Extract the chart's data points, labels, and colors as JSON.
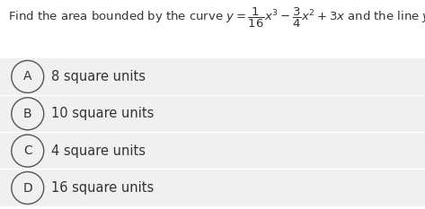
{
  "question_text": "Find the area bounded by the curve $y=\\dfrac{1}{16}x^3-\\dfrac{3}{4}x^2+3x$ and the line $y=x$.",
  "options": [
    {
      "label": "A",
      "text": "8 square units"
    },
    {
      "label": "B",
      "text": "10 square units"
    },
    {
      "label": "C",
      "text": "4 square units"
    },
    {
      "label": "D",
      "text": "16 square units"
    }
  ],
  "bg_color": "#ffffff",
  "option_bg": "#f0f0f0",
  "separator_color": "#ffffff",
  "circle_edge_color": "#555555",
  "text_color": "#333333",
  "label_color": "#333333",
  "question_fontsize": 9.5,
  "option_fontsize": 10.5,
  "label_fontsize": 10.0
}
